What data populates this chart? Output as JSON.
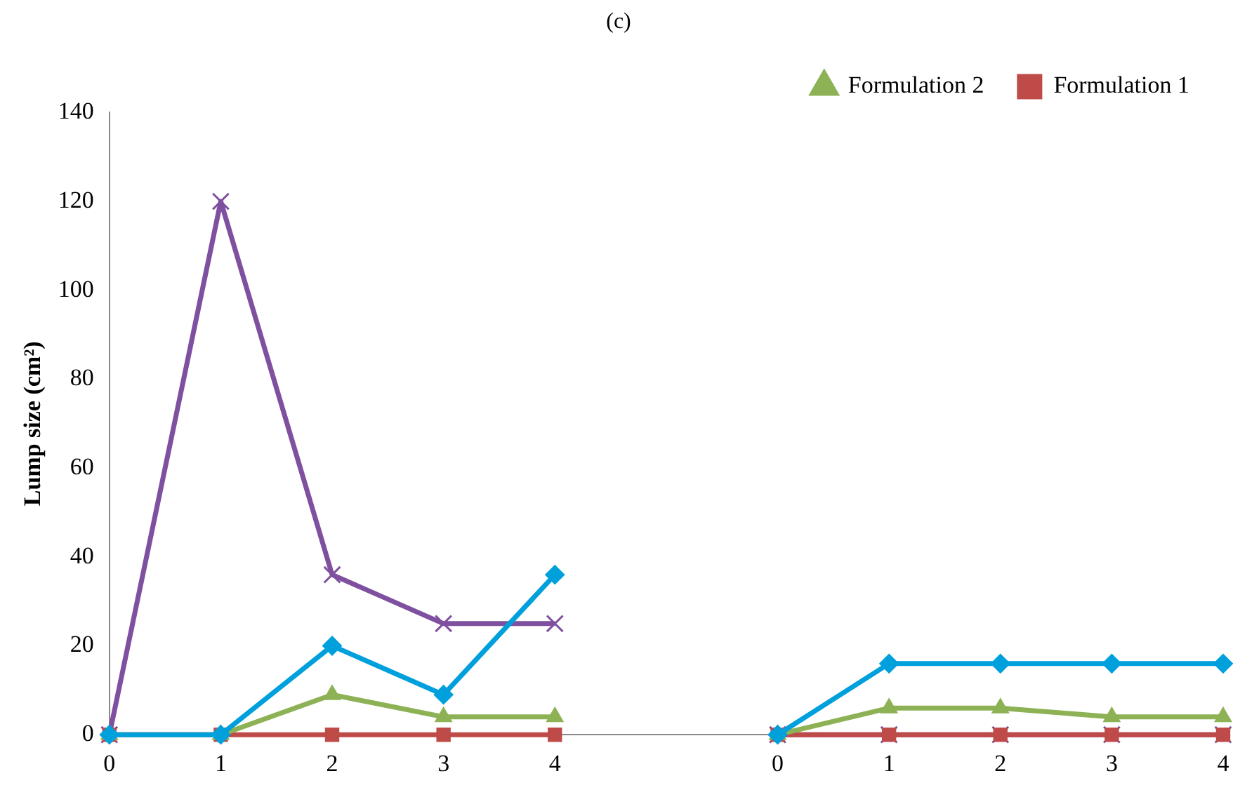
{
  "chart_data": {
    "type": "line",
    "title": "(c)",
    "ylabel": "Lump size (cm²)",
    "categories": [
      "0",
      "1",
      "2",
      "3",
      "4",
      null,
      "0",
      "1",
      "2",
      "3",
      "4"
    ],
    "ylim": [
      0,
      140
    ],
    "yticks": [
      0,
      20,
      40,
      60,
      80,
      100,
      120,
      140
    ],
    "grid": false,
    "legend": "top right",
    "series": [
      {
        "color": "#00a0dc",
        "marker": "diamond",
        "values": [
          0,
          0,
          20,
          9,
          36,
          null,
          0,
          16,
          16,
          16,
          16
        ]
      },
      {
        "name": "Formulation 2",
        "color": "#8db255",
        "marker": "triangle",
        "values": [
          0,
          0,
          9,
          4,
          4,
          null,
          0,
          6,
          6,
          4,
          4
        ]
      },
      {
        "name": "Formulation 1",
        "color": "#be4b48",
        "marker": "square",
        "values": [
          0,
          0,
          0,
          0,
          0,
          null,
          0,
          0,
          0,
          0,
          0
        ]
      },
      {
        "color": "#7f509f",
        "marker": "cross",
        "values": [
          0,
          120,
          36,
          25,
          25,
          null,
          0,
          0,
          0,
          0,
          0
        ]
      }
    ]
  }
}
